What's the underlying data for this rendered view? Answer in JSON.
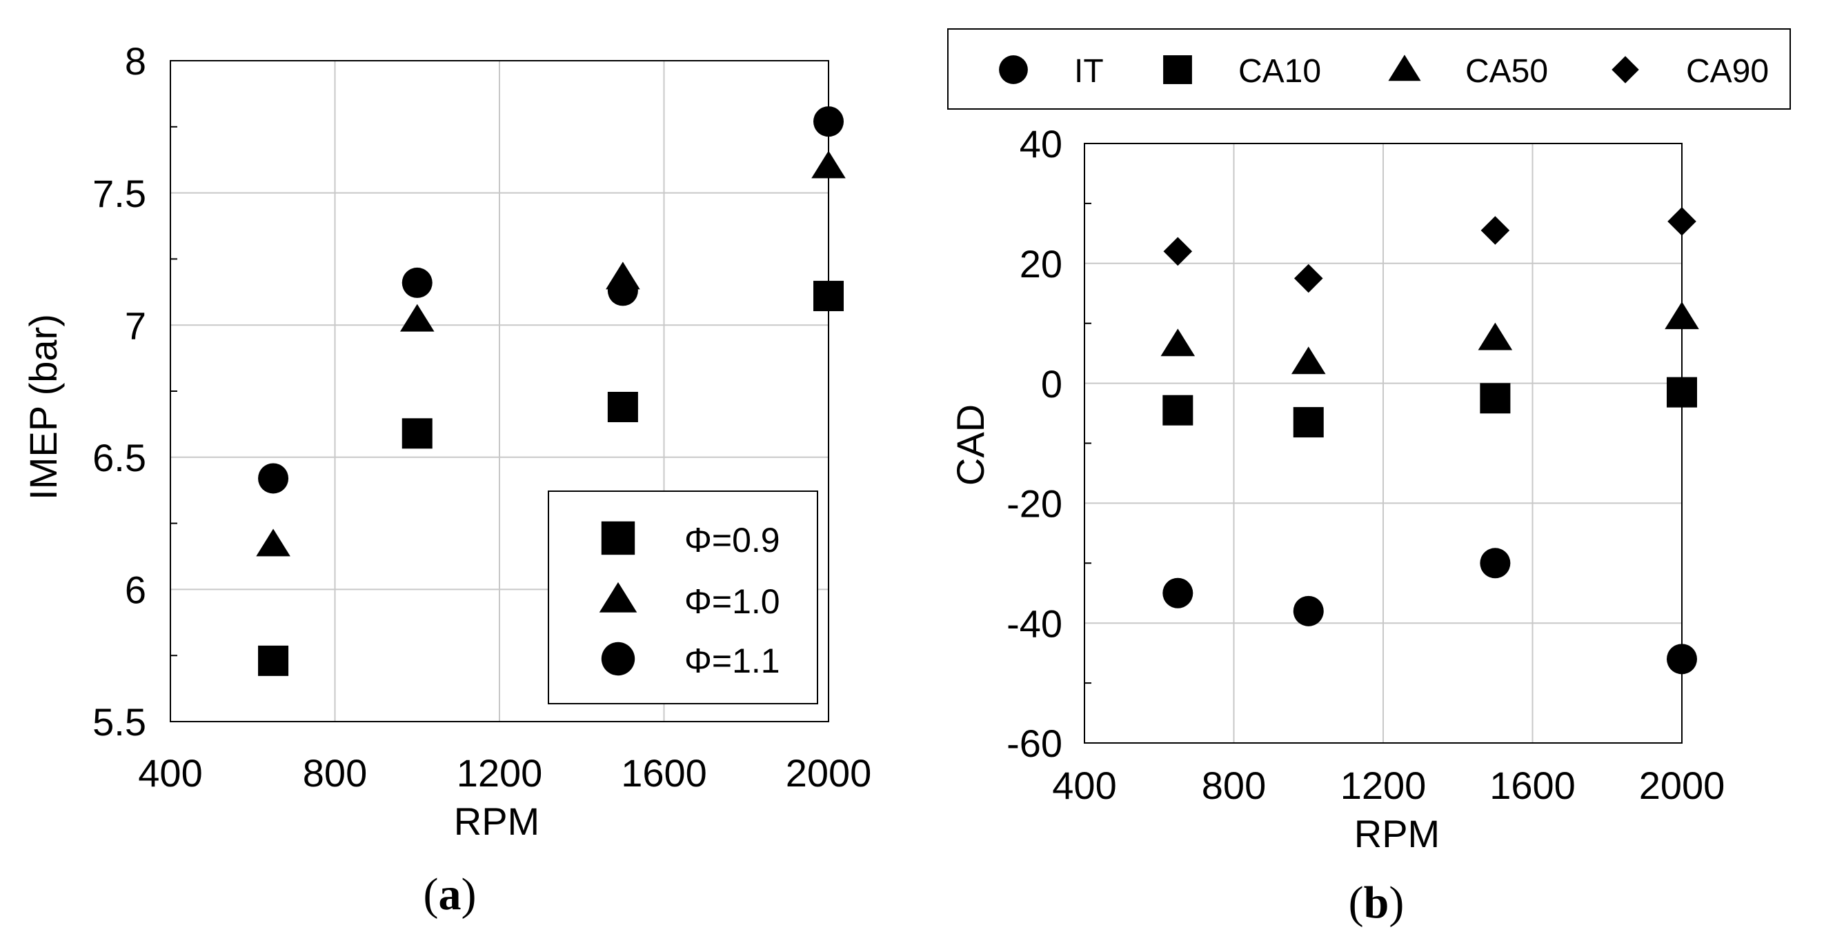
{
  "colors": {
    "grid": "#c8c8c8",
    "ink": "#000000",
    "background": "#ffffff"
  },
  "chart_data": [
    {
      "id": "a",
      "type": "scatter",
      "panel_label": "a",
      "xlabel": "RPM",
      "ylabel": "IMEP (bar)",
      "xlim": [
        400,
        2000
      ],
      "ylim": [
        5.5,
        8
      ],
      "xticks": [
        400,
        800,
        1200,
        1600,
        2000
      ],
      "xtick_labels": [
        "400",
        "800",
        "1200",
        "1600",
        "2000"
      ],
      "yticks": [
        5.5,
        6,
        6.5,
        7,
        7.5,
        8
      ],
      "ytick_labels": [
        "5.5",
        "6",
        "6.5",
        "7",
        "7.5",
        "8"
      ],
      "grid": true,
      "legend_position": "bottom-right",
      "legend_symbol": "Φ",
      "series": [
        {
          "name": "Φ=0.9",
          "marker": "square",
          "x": [
            650,
            1000,
            1500,
            2000
          ],
          "y": [
            5.73,
            6.59,
            6.69,
            7.11
          ]
        },
        {
          "name": "Φ=1.0",
          "marker": "triangle",
          "x": [
            650,
            1000,
            1500,
            2000
          ],
          "y": [
            6.17,
            7.02,
            7.18,
            7.6
          ]
        },
        {
          "name": "Φ=1.1",
          "marker": "circle",
          "x": [
            650,
            1000,
            1500,
            2000
          ],
          "y": [
            6.42,
            7.16,
            7.13,
            7.77
          ]
        }
      ]
    },
    {
      "id": "b",
      "type": "scatter",
      "panel_label": "b",
      "xlabel": "RPM",
      "ylabel": "CAD",
      "xlim": [
        400,
        2000
      ],
      "ylim": [
        -60,
        40
      ],
      "xticks": [
        400,
        800,
        1200,
        1600,
        2000
      ],
      "xtick_labels": [
        "400",
        "800",
        "1200",
        "1600",
        "2000"
      ],
      "yticks": [
        -60,
        -40,
        -20,
        0,
        20,
        40
      ],
      "ytick_labels": [
        "-60",
        "-40",
        "-20",
        "0",
        "20",
        "40"
      ],
      "grid": true,
      "legend_position": "top",
      "series": [
        {
          "name": "IT",
          "marker": "circle",
          "x": [
            650,
            1000,
            1500,
            2000
          ],
          "y": [
            -35,
            -38,
            -30,
            -46
          ]
        },
        {
          "name": "CA10",
          "marker": "square",
          "x": [
            650,
            1000,
            1500,
            2000
          ],
          "y": [
            -4.5,
            -6.5,
            -2.5,
            -1.5
          ]
        },
        {
          "name": "CA50",
          "marker": "triangle",
          "x": [
            650,
            1000,
            1500,
            2000
          ],
          "y": [
            6.5,
            3.5,
            7.5,
            11
          ]
        },
        {
          "name": "CA90",
          "marker": "diamond",
          "x": [
            650,
            1000,
            1500,
            2000
          ],
          "y": [
            22,
            17.5,
            25.5,
            27
          ]
        }
      ]
    }
  ]
}
